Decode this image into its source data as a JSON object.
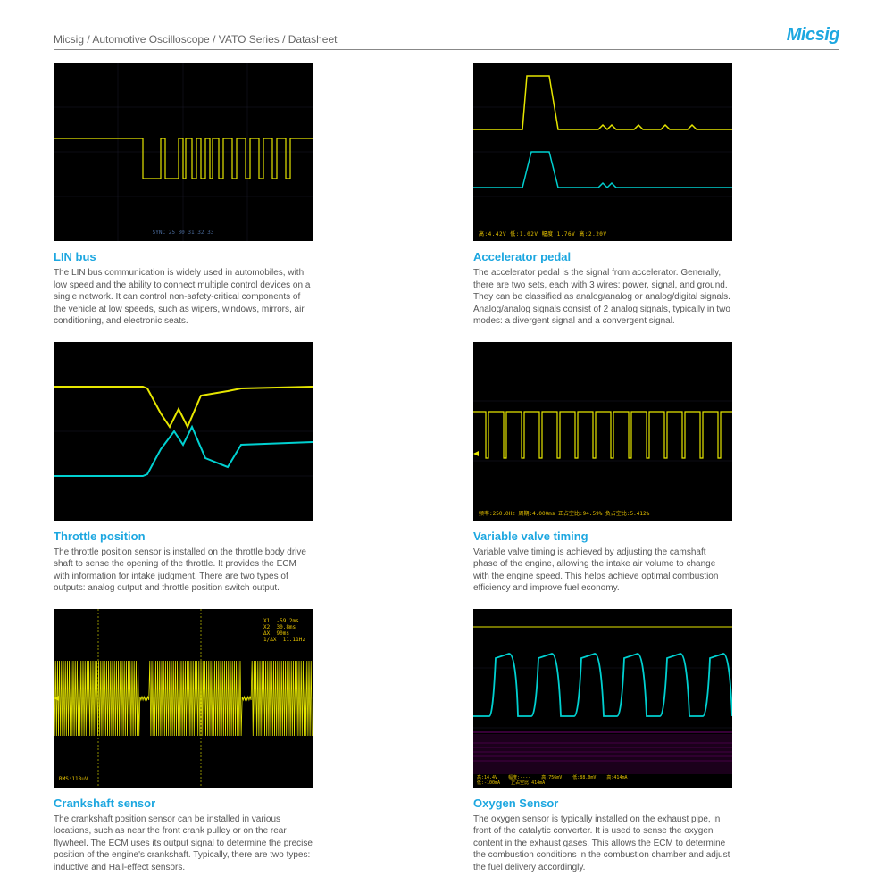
{
  "header": {
    "breadcrumb": "Micsig / Automotive Oscilloscope / VATO Series / Datasheet",
    "logo": "Micsig"
  },
  "colors": {
    "scope_bg": "#000000",
    "ch1": "#e6e600",
    "ch2": "#00d0d0",
    "ch3": "#e000e0",
    "accent": "#1da7e0",
    "annot": "#e6c200",
    "grid": "#1a1a2a"
  },
  "cards": [
    {
      "id": "lin",
      "title": "LIN bus",
      "desc": "The LIN bus communication is widely used in automobiles, with low speed and the ability to connect multiple control devices on a single network. It can control non-safety-critical components of the vehicle at low speeds, such as wipers, windows, mirrors, air conditioning, and electronic seats.",
      "annot_bottom": "SYNC      25   30   31   32   33"
    },
    {
      "id": "accel",
      "title": "Accelerator pedal",
      "desc": "The accelerator pedal is the signal from accelerator. Generally, there are two sets, each with 3 wires: power, signal, and ground. They can be classified as analog/analog or analog/digital signals. Analog/analog signals consist of 2 analog signals, typically in two modes: a divergent signal and a convergent signal.",
      "annot_bottom": "高:4.42V        低:1.02V        幅度:1.76V        高:2.20V"
    },
    {
      "id": "throttle",
      "title": "Throttle position",
      "desc": "The throttle position sensor is installed on the throttle body drive shaft to sense the opening of the throttle. It provides the ECM with information for intake judgment. There are two types of outputs: analog output and throttle position switch output."
    },
    {
      "id": "vvt",
      "title": "Variable valve timing",
      "desc": "Variable valve timing is achieved by adjusting the camshaft phase of the engine, allowing the intake air volume to change with the engine speed. This helps achieve optimal combustion efficiency and improve fuel economy.",
      "annot_bottom": "频率:250.0Hz    周期:4.000ms    正占空比:94.59%    负占空比:5.412%"
    },
    {
      "id": "crank",
      "title": "Crankshaft sensor",
      "desc": "The crankshaft position sensor can be installed in various locations, such as near the front crank pulley or on the rear flywheel. The ECM uses its output signal to determine the precise position of the engine's crankshaft. Typically, there are two types: inductive and Hall-effect sensors.",
      "annot_tr": "X1  -59.2ms\nX2  30.8ms\nΔX  90ms\n1/ΔX  11.11Hz",
      "annot_bl": "RMS:118uV"
    },
    {
      "id": "oxygen",
      "title": "Oxygen Sensor",
      "desc": "The oxygen sensor is typically installed on the exhaust pipe, in front of the catalytic converter. It is used to sense the oxygen content in the exhaust gases. This allows the ECM to determine the combustion conditions in the combustion chamber and adjust the fuel delivery accordingly.",
      "annot_bottom": "高:14.4V    幅度:----    高:756mV    低:88.0mV    高:414mA\n低:-100mA    正占空比:414mA"
    }
  ]
}
